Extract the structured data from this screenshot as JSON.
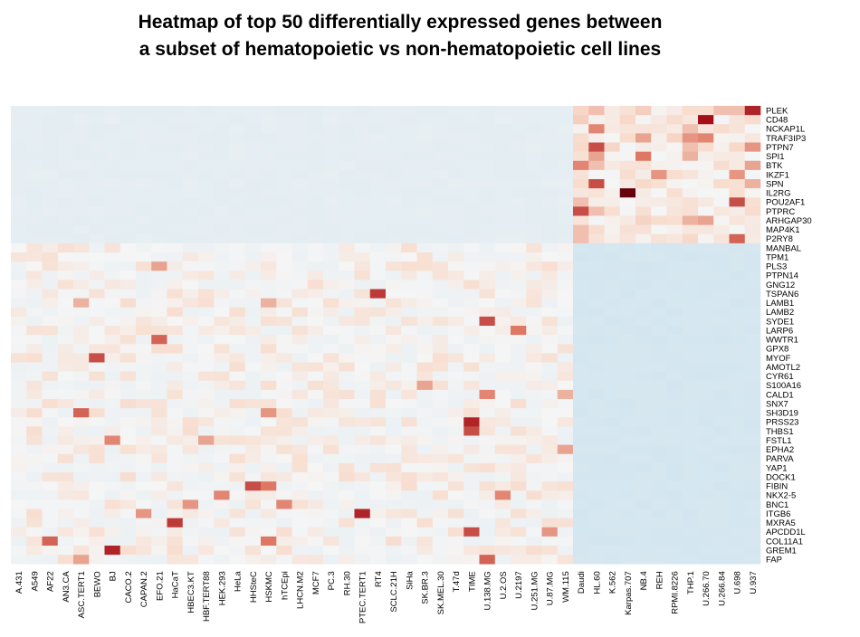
{
  "chart_data": {
    "type": "heatmap",
    "title": "Heatmap of top 50 differentially expressed genes between\na subset of hematopoietic vs non-hematopoietic cell lines",
    "colorscale": {
      "low": "#cde3ef",
      "mid": "#f5f5f5",
      "high": "#a50f15",
      "max": "#67000d"
    },
    "genes": [
      "PLEK",
      "CD48",
      "NCKAP1L",
      "TRAF3IP3",
      "PTPN7",
      "SPI1",
      "BTK",
      "IKZF1",
      "SPN",
      "IL2RG",
      "POU2AF1",
      "PTPRC",
      "ARHGAP30",
      "MAP4K1",
      "P2RY8",
      "MANBAL",
      "TPM1",
      "PLS3",
      "PTPN14",
      "GNG12",
      "TSPAN6",
      "LAMB1",
      "LAMB2",
      "SYDE1",
      "LARP6",
      "WWTR1",
      "GPX8",
      "MYOF",
      "AMOTL2",
      "CYR61",
      "S100A16",
      "CALD1",
      "SNX7",
      "SH3D19",
      "PRSS23",
      "THBS1",
      "FSTL1",
      "EPHA2",
      "PARVA",
      "YAP1",
      "DOCK1",
      "FIBIN",
      "NKX2-5",
      "BNC1",
      "ITGB6",
      "MXRA5",
      "APCDD1L",
      "COL11A1",
      "GREM1",
      "FAP"
    ],
    "cell_lines": [
      "A.431",
      "A549",
      "AF22",
      "AN3.CA",
      "ASC.TERT1",
      "BEWO",
      "BJ",
      "CACO.2",
      "CAPAN.2",
      "EFO.21",
      "HaCaT",
      "HBEC3.KT",
      "HBF.TERT88",
      "HEK.293",
      "HeLa",
      "HHSteC",
      "HSKMC",
      "hTCEpi",
      "LHCN.M2",
      "MCF7",
      "PC.3",
      "RH.30",
      "PTEC.TERT1",
      "RT4",
      "SCLC.21H",
      "SiHa",
      "SK.BR.3",
      "SK.MEL.30",
      "T.47d",
      "TIME",
      "U.138.MG",
      "U.2.OS",
      "U.2197",
      "U.251.MG",
      "U.87.MG",
      "WM.115",
      "Daudi",
      "HL.60",
      "K.562",
      "Karpas.707",
      "NB.4",
      "REH",
      "RPMI.8226",
      "THP.1",
      "U.266.70",
      "U.266.84",
      "U.698",
      "U.937"
    ],
    "hematopoietic_start_index": 36,
    "hematopoietic_gene_count": 15,
    "high_values": [
      {
        "gene": "PLEK",
        "cell": "U.937",
        "value": 0.85
      },
      {
        "gene": "PLEK",
        "cell": "HL.60",
        "value": 0.4
      },
      {
        "gene": "PLEK",
        "cell": "NB.4",
        "value": 0.35
      },
      {
        "gene": "PLEK",
        "cell": "U.266.84",
        "value": 0.4
      },
      {
        "gene": "PLEK",
        "cell": "U.698",
        "value": 0.4
      },
      {
        "gene": "CD48",
        "cell": "U.266.70",
        "value": 0.9
      },
      {
        "gene": "CD48",
        "cell": "Daudi",
        "value": 0.35
      },
      {
        "gene": "CD48",
        "cell": "U.937",
        "value": 0.3
      },
      {
        "gene": "NCKAP1L",
        "cell": "HL.60",
        "value": 0.6
      },
      {
        "gene": "NCKAP1L",
        "cell": "THP.1",
        "value": 0.4
      },
      {
        "gene": "TRAF3IP3",
        "cell": "NB.4",
        "value": 0.5
      },
      {
        "gene": "TRAF3IP3",
        "cell": "THP.1",
        "value": 0.55
      },
      {
        "gene": "TRAF3IP3",
        "cell": "U.266.70",
        "value": 0.6
      },
      {
        "gene": "PTPN7",
        "cell": "HL.60",
        "value": 0.75
      },
      {
        "gene": "PTPN7",
        "cell": "THP.1",
        "value": 0.4
      },
      {
        "gene": "PTPN7",
        "cell": "U.937",
        "value": 0.55
      },
      {
        "gene": "SPI1",
        "cell": "HL.60",
        "value": 0.5
      },
      {
        "gene": "SPI1",
        "cell": "NB.4",
        "value": 0.65
      },
      {
        "gene": "SPI1",
        "cell": "THP.1",
        "value": 0.45
      },
      {
        "gene": "BTK",
        "cell": "Daudi",
        "value": 0.6
      },
      {
        "gene": "BTK",
        "cell": "HL.60",
        "value": 0.4
      },
      {
        "gene": "BTK",
        "cell": "U.937",
        "value": 0.5
      },
      {
        "gene": "IKZF1",
        "cell": "REH",
        "value": 0.55
      },
      {
        "gene": "IKZF1",
        "cell": "U.698",
        "value": 0.55
      },
      {
        "gene": "SPN",
        "cell": "HL.60",
        "value": 0.75
      },
      {
        "gene": "SPN",
        "cell": "U.937",
        "value": 0.45
      },
      {
        "gene": "IL2RG",
        "cell": "Karpas.707",
        "value": 1.0
      },
      {
        "gene": "POU2AF1",
        "cell": "U.698",
        "value": 0.75
      },
      {
        "gene": "POU2AF1",
        "cell": "Daudi",
        "value": 0.4
      },
      {
        "gene": "PTPRC",
        "cell": "Daudi",
        "value": 0.75
      },
      {
        "gene": "PTPRC",
        "cell": "HL.60",
        "value": 0.4
      },
      {
        "gene": "ARHGAP30",
        "cell": "THP.1",
        "value": 0.45
      },
      {
        "gene": "ARHGAP30",
        "cell": "U.266.70",
        "value": 0.5
      },
      {
        "gene": "MAP4K1",
        "cell": "Daudi",
        "value": 0.4
      },
      {
        "gene": "P2RY8",
        "cell": "U.698",
        "value": 0.7
      },
      {
        "gene": "P2RY8",
        "cell": "Daudi",
        "value": 0.4
      },
      {
        "gene": "PLS3",
        "cell": "EFO.21",
        "value": 0.5
      },
      {
        "gene": "TSPAN6",
        "cell": "RT4",
        "value": 0.8
      },
      {
        "gene": "LAMB1",
        "cell": "ASC.TERT1",
        "value": 0.45
      },
      {
        "gene": "LAMB1",
        "cell": "HSKMC",
        "value": 0.45
      },
      {
        "gene": "SYDE1",
        "cell": "U.138.MG",
        "value": 0.75
      },
      {
        "gene": "LARP6",
        "cell": "U.2197",
        "value": 0.65
      },
      {
        "gene": "WWTR1",
        "cell": "EFO.21",
        "value": 0.7
      },
      {
        "gene": "MYOF",
        "cell": "BEWO",
        "value": 0.75
      },
      {
        "gene": "S100A16",
        "cell": "SK.BR.3",
        "value": 0.5
      },
      {
        "gene": "CALD1",
        "cell": "U.138.MG",
        "value": 0.6
      },
      {
        "gene": "CALD1",
        "cell": "WM.115",
        "value": 0.45
      },
      {
        "gene": "SH3D19",
        "cell": "ASC.TERT1",
        "value": 0.7
      },
      {
        "gene": "SH3D19",
        "cell": "HSKMC",
        "value": 0.55
      },
      {
        "gene": "PRSS23",
        "cell": "TIME",
        "value": 0.85
      },
      {
        "gene": "THBS1",
        "cell": "TIME",
        "value": 0.75
      },
      {
        "gene": "FSTL1",
        "cell": "BJ",
        "value": 0.6
      },
      {
        "gene": "FSTL1",
        "cell": "HBF.TERT88",
        "value": 0.5
      },
      {
        "gene": "EPHA2",
        "cell": "WM.115",
        "value": 0.5
      },
      {
        "gene": "FIBIN",
        "cell": "HHSteC",
        "value": 0.75
      },
      {
        "gene": "FIBIN",
        "cell": "HSKMC",
        "value": 0.65
      },
      {
        "gene": "NKX2-5",
        "cell": "HEK.293",
        "value": 0.6
      },
      {
        "gene": "NKX2-5",
        "cell": "U.2.OS",
        "value": 0.6
      },
      {
        "gene": "BNC1",
        "cell": "HBEC3.KT",
        "value": 0.55
      },
      {
        "gene": "BNC1",
        "cell": "hTCEpi",
        "value": 0.6
      },
      {
        "gene": "ITGB6",
        "cell": "CAPAN.2",
        "value": 0.55
      },
      {
        "gene": "ITGB6",
        "cell": "PTEC.TERT1",
        "value": 0.85
      },
      {
        "gene": "MXRA5",
        "cell": "HaCaT",
        "value": 0.8
      },
      {
        "gene": "APCDD1L",
        "cell": "TIME",
        "value": 0.75
      },
      {
        "gene": "APCDD1L",
        "cell": "U.87.MG",
        "value": 0.55
      },
      {
        "gene": "COL11A1",
        "cell": "AF22",
        "value": 0.7
      },
      {
        "gene": "COL11A1",
        "cell": "HSKMC",
        "value": 0.65
      },
      {
        "gene": "GREM1",
        "cell": "BJ",
        "value": 0.85
      },
      {
        "gene": "FAP",
        "cell": "U.138.MG",
        "value": 0.7
      },
      {
        "gene": "FAP",
        "cell": "ASC.TERT1",
        "value": 0.5
      }
    ]
  }
}
